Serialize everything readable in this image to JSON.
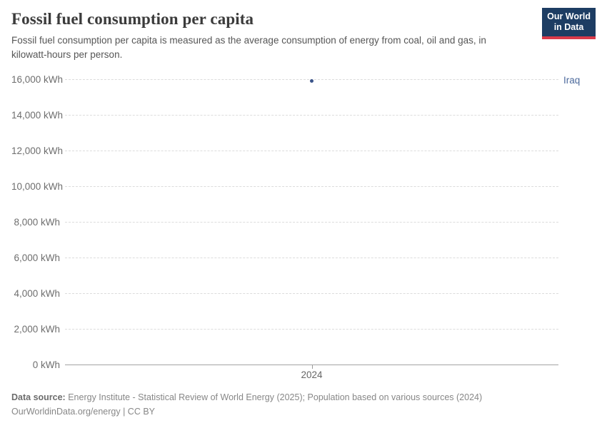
{
  "header": {
    "title": "Fossil fuel consumption per capita",
    "subtitle": "Fossil fuel consumption per capita is measured as the average consumption of energy from coal, oil and gas, in kilowatt-hours per person.",
    "logo": {
      "line1": "Our World",
      "line2": "in Data",
      "bg_color": "#1d3d63",
      "accent_color": "#d93a4a"
    }
  },
  "chart_data": {
    "type": "scatter",
    "title": "Fossil fuel consumption per capita",
    "xlabel": "",
    "ylabel": "",
    "unit": "kWh",
    "ylim": [
      0,
      16000
    ],
    "yticks": [
      0,
      2000,
      4000,
      6000,
      8000,
      10000,
      12000,
      14000,
      16000
    ],
    "ytick_labels": [
      "0 kWh",
      "2,000 kWh",
      "4,000 kWh",
      "6,000 kWh",
      "8,000 kWh",
      "10,000 kWh",
      "12,000 kWh",
      "14,000 kWh",
      "16,000 kWh"
    ],
    "xticks": [
      2024
    ],
    "xtick_labels": [
      "2024"
    ],
    "grid": "horizontal-dashed",
    "legend_position": "entity-label-right",
    "series": [
      {
        "name": "Iraq",
        "color": "#3b548a",
        "label_color": "#4c6a9c",
        "points": [
          {
            "x": 2024,
            "y": 15940
          }
        ]
      }
    ]
  },
  "footer": {
    "data_source_label": "Data source:",
    "data_source_text": "Energy Institute - Statistical Review of World Energy (2025); Population based on various sources (2024)",
    "license_line": "OurWorldinData.org/energy | CC BY"
  },
  "colors": {
    "title": "#3b3b3b",
    "subtitle": "#565656",
    "tick_label": "#6e6e6e",
    "gridline": "#dcdcdc",
    "axis": "#a3a3a3",
    "footer_text": "#878787"
  }
}
